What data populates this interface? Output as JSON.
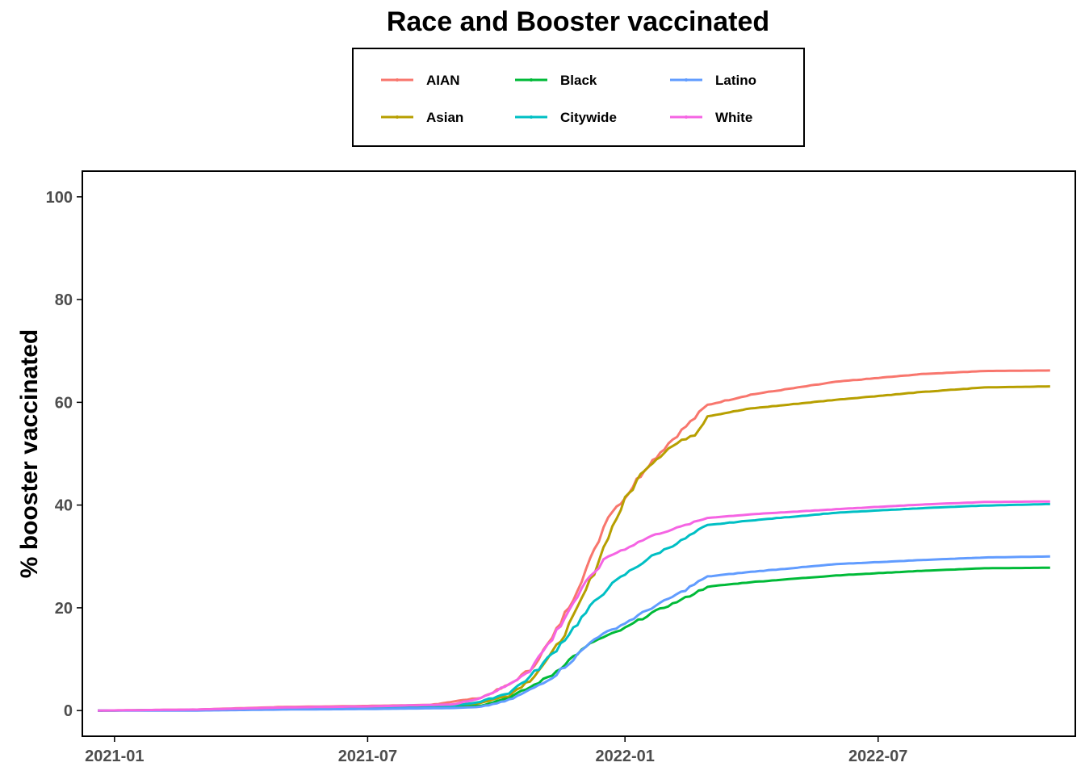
{
  "chart_data": {
    "type": "line",
    "title": "Race and Booster vaccinated",
    "xlabel": "",
    "ylabel": "% booster vaccinated",
    "x_ticks": [
      "2021-01",
      "2021-07",
      "2022-01",
      "2022-07"
    ],
    "y_ticks": [
      0,
      20,
      40,
      60,
      80,
      100
    ],
    "xlim": [
      "2020-12-09",
      "2022-11-19"
    ],
    "ylim": [
      -5,
      105
    ],
    "grid": false,
    "legend_position": "top",
    "series": [
      {
        "name": "AIAN",
        "color": "#F8766D",
        "points": [
          [
            "2020-12-20",
            0
          ],
          [
            "2021-03-01",
            0.2
          ],
          [
            "2021-05-01",
            0.7
          ],
          [
            "2021-07-01",
            0.9
          ],
          [
            "2021-08-15",
            1.1
          ],
          [
            "2021-09-01",
            1.8
          ],
          [
            "2021-09-20",
            2.5
          ],
          [
            "2021-10-10",
            5
          ],
          [
            "2021-10-25",
            8
          ],
          [
            "2021-11-10",
            14
          ],
          [
            "2021-11-25",
            22
          ],
          [
            "2021-12-10",
            31
          ],
          [
            "2021-12-20",
            38
          ],
          [
            "2022-01-01",
            41.5
          ],
          [
            "2022-01-15",
            47
          ],
          [
            "2022-02-01",
            52
          ],
          [
            "2022-02-20",
            57
          ],
          [
            "2022-03-01",
            59.5
          ],
          [
            "2022-04-01",
            61.5
          ],
          [
            "2022-06-01",
            64
          ],
          [
            "2022-08-01",
            65.5
          ],
          [
            "2022-09-15",
            66.1
          ],
          [
            "2022-11-01",
            66.2
          ]
        ]
      },
      {
        "name": "Asian",
        "color": "#B79F00",
        "points": [
          [
            "2020-12-20",
            0
          ],
          [
            "2021-03-01",
            0.1
          ],
          [
            "2021-05-01",
            0.3
          ],
          [
            "2021-07-01",
            0.5
          ],
          [
            "2021-09-01",
            0.8
          ],
          [
            "2021-09-20",
            1.5
          ],
          [
            "2021-10-10",
            3
          ],
          [
            "2021-10-25",
            6
          ],
          [
            "2021-11-10",
            11
          ],
          [
            "2021-11-25",
            18
          ],
          [
            "2021-12-10",
            27
          ],
          [
            "2021-12-20",
            34
          ],
          [
            "2022-01-01",
            41
          ],
          [
            "2022-01-15",
            47
          ],
          [
            "2022-02-01",
            51
          ],
          [
            "2022-02-20",
            54
          ],
          [
            "2022-03-01",
            57.3
          ],
          [
            "2022-04-01",
            58.8
          ],
          [
            "2022-06-01",
            60.5
          ],
          [
            "2022-08-01",
            62
          ],
          [
            "2022-09-15",
            62.9
          ],
          [
            "2022-11-01",
            63.1
          ]
        ]
      },
      {
        "name": "Black",
        "color": "#00BA38",
        "points": [
          [
            "2020-12-20",
            0
          ],
          [
            "2021-03-01",
            0.1
          ],
          [
            "2021-05-01",
            0.3
          ],
          [
            "2021-07-01",
            0.4
          ],
          [
            "2021-09-01",
            0.6
          ],
          [
            "2021-09-20",
            1
          ],
          [
            "2021-10-10",
            2.5
          ],
          [
            "2021-10-25",
            4.5
          ],
          [
            "2021-11-10",
            7
          ],
          [
            "2021-11-25",
            10.5
          ],
          [
            "2021-12-10",
            13.5
          ],
          [
            "2022-01-01",
            16
          ],
          [
            "2022-01-20",
            19
          ],
          [
            "2022-02-10",
            21.5
          ],
          [
            "2022-03-01",
            24.1
          ],
          [
            "2022-04-01",
            25
          ],
          [
            "2022-06-01",
            26.3
          ],
          [
            "2022-08-01",
            27.2
          ],
          [
            "2022-09-15",
            27.7
          ],
          [
            "2022-11-01",
            27.8
          ]
        ]
      },
      {
        "name": "Citywide",
        "color": "#00BFC4",
        "points": [
          [
            "2020-12-20",
            0
          ],
          [
            "2021-03-01",
            0.1
          ],
          [
            "2021-05-01",
            0.4
          ],
          [
            "2021-07-01",
            0.6
          ],
          [
            "2021-09-01",
            1
          ],
          [
            "2021-09-20",
            1.7
          ],
          [
            "2021-10-10",
            3.5
          ],
          [
            "2021-10-25",
            6.5
          ],
          [
            "2021-11-10",
            11
          ],
          [
            "2021-11-25",
            16
          ],
          [
            "2021-12-10",
            21
          ],
          [
            "2021-12-20",
            24
          ],
          [
            "2022-01-01",
            26.5
          ],
          [
            "2022-01-20",
            30
          ],
          [
            "2022-02-10",
            33
          ],
          [
            "2022-03-01",
            36.1
          ],
          [
            "2022-04-01",
            37
          ],
          [
            "2022-06-01",
            38.5
          ],
          [
            "2022-08-01",
            39.4
          ],
          [
            "2022-09-15",
            39.9
          ],
          [
            "2022-11-01",
            40.2
          ]
        ]
      },
      {
        "name": "Latino",
        "color": "#619CFF",
        "points": [
          [
            "2020-12-20",
            0
          ],
          [
            "2021-03-01",
            0
          ],
          [
            "2021-05-01",
            0.2
          ],
          [
            "2021-07-01",
            0.3
          ],
          [
            "2021-09-01",
            0.5
          ],
          [
            "2021-09-20",
            0.7
          ],
          [
            "2021-10-10",
            2
          ],
          [
            "2021-10-25",
            4
          ],
          [
            "2021-11-10",
            6.5
          ],
          [
            "2021-11-25",
            10
          ],
          [
            "2021-12-10",
            14
          ],
          [
            "2022-01-01",
            17
          ],
          [
            "2022-01-20",
            20
          ],
          [
            "2022-02-10",
            23
          ],
          [
            "2022-03-01",
            26.1
          ],
          [
            "2022-04-01",
            27
          ],
          [
            "2022-06-01",
            28.5
          ],
          [
            "2022-08-01",
            29.3
          ],
          [
            "2022-09-15",
            29.8
          ],
          [
            "2022-11-01",
            30
          ]
        ]
      },
      {
        "name": "White",
        "color": "#F564E3",
        "points": [
          [
            "2020-12-20",
            0
          ],
          [
            "2021-03-01",
            0.2
          ],
          [
            "2021-05-01",
            0.6
          ],
          [
            "2021-07-01",
            0.8
          ],
          [
            "2021-09-01",
            1.2
          ],
          [
            "2021-09-20",
            2.5
          ],
          [
            "2021-10-10",
            5
          ],
          [
            "2021-10-25",
            8
          ],
          [
            "2021-11-10",
            14
          ],
          [
            "2021-11-25",
            21
          ],
          [
            "2021-12-10",
            27
          ],
          [
            "2021-12-20",
            30
          ],
          [
            "2022-01-01",
            31.5
          ],
          [
            "2022-01-20",
            34
          ],
          [
            "2022-02-10",
            35.8
          ],
          [
            "2022-03-01",
            37.5
          ],
          [
            "2022-04-01",
            38.2
          ],
          [
            "2022-06-01",
            39.2
          ],
          [
            "2022-08-01",
            40.1
          ],
          [
            "2022-09-15",
            40.6
          ],
          [
            "2022-11-01",
            40.7
          ]
        ]
      }
    ]
  }
}
